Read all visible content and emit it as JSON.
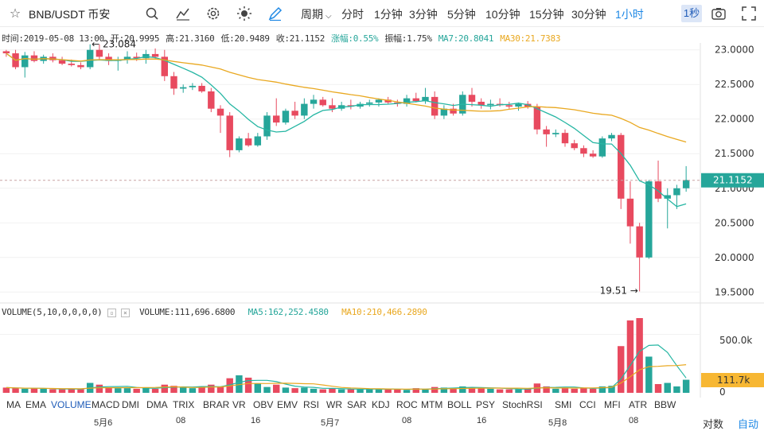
{
  "toolbar": {
    "pair": "BNB/USDT 币安",
    "period_label": "周期",
    "periods": [
      "分时",
      "1分钟",
      "3分钟",
      "5分钟",
      "10分钟",
      "15分钟",
      "30分钟",
      "1小时"
    ],
    "active_period": "1小时",
    "sec_button": "1秒",
    "icons": [
      "star-icon",
      "search-icon",
      "indicator-icon",
      "gear-icon",
      "sun-icon",
      "pen-icon",
      "camera-icon",
      "fullscreen-icon"
    ]
  },
  "ohlc": {
    "time": "时间:2019-05-08 13:00",
    "open": "开:20.9995",
    "high": "高:21.3160",
    "low": "低:20.9489",
    "close": "收:21.1152",
    "change": "涨幅:0.55%",
    "amplitude": "振幅:1.75%",
    "ma7": "MA7:20.8041",
    "ma30": "MA30:21.7383"
  },
  "volume_info": {
    "label": "VOLUME(5,10,0,0,0,0)",
    "value": "VOLUME:111,696.6800",
    "ma5": "MA5:162,252.4580",
    "ma10": "MA10:210,466.2890"
  },
  "price_axis": [
    "23.0000",
    "22.5000",
    "22.0000",
    "21.5000",
    "21.0000",
    "20.5000",
    "20.0000",
    "19.5000"
  ],
  "current_price": "21.1152",
  "annotations": {
    "high": "← 23.084",
    "low": "19.51 →"
  },
  "volume_axis": [
    "500.0k",
    "0"
  ],
  "current_volume": "111.7k",
  "indicators": [
    "MA",
    "EMA",
    "VOLUME",
    "MACD",
    "DMI",
    "DMA",
    "TRIX",
    "BRAR",
    "VR",
    "OBV",
    "EMV",
    "RSI",
    "WR",
    "SAR",
    "KDJ",
    "ROC",
    "MTM",
    "BOLL",
    "PSY",
    "StochRSI",
    "SMI",
    "CCI",
    "MFI",
    "ATR",
    "BBW"
  ],
  "active_indicator": "VOLUME",
  "date_labels": [
    "5月6",
    "08",
    "16",
    "5月7",
    "08",
    "16",
    "5月8",
    "08"
  ],
  "corner": {
    "scale": "对数",
    "auto": "自动"
  },
  "colors": {
    "up": "#26a69a",
    "down": "#e84a5f",
    "ma_fast": "#26b6a3",
    "ma_slow": "#e9a820",
    "accent": "#1e88e5"
  },
  "chart_data": {
    "type": "candlestick",
    "ylim": [
      19.4,
      23.1
    ],
    "candles": [
      [
        22.98,
        23.0,
        22.9,
        22.95
      ],
      [
        22.95,
        23.0,
        22.72,
        22.75
      ],
      [
        22.75,
        22.97,
        22.6,
        22.92
      ],
      [
        22.92,
        22.98,
        22.82,
        22.84
      ],
      [
        22.84,
        22.93,
        22.8,
        22.9
      ],
      [
        22.9,
        22.95,
        22.82,
        22.85
      ],
      [
        22.85,
        22.9,
        22.78,
        22.8
      ],
      [
        22.8,
        22.86,
        22.76,
        22.78
      ],
      [
        22.78,
        22.82,
        22.72,
        22.75
      ],
      [
        22.75,
        23.08,
        22.72,
        23.0
      ],
      [
        23.0,
        23.08,
        22.85,
        22.9
      ],
      [
        22.9,
        22.95,
        22.78,
        22.84
      ],
      [
        22.84,
        22.9,
        22.7,
        22.86
      ],
      [
        22.86,
        22.98,
        22.8,
        22.9
      ],
      [
        22.9,
        22.96,
        22.84,
        22.88
      ],
      [
        22.88,
        23.0,
        22.8,
        22.94
      ],
      [
        22.94,
        23.02,
        22.86,
        22.9
      ],
      [
        22.9,
        23.0,
        22.55,
        22.62
      ],
      [
        22.62,
        22.68,
        22.35,
        22.44
      ],
      [
        22.44,
        22.5,
        22.38,
        22.46
      ],
      [
        22.46,
        22.52,
        22.42,
        22.48
      ],
      [
        22.48,
        22.52,
        22.38,
        22.4
      ],
      [
        22.4,
        22.45,
        22.1,
        22.15
      ],
      [
        22.15,
        22.2,
        21.8,
        22.05
      ],
      [
        22.05,
        22.1,
        21.45,
        21.55
      ],
      [
        21.55,
        21.75,
        21.52,
        21.72
      ],
      [
        21.72,
        21.8,
        21.6,
        21.62
      ],
      [
        21.62,
        21.8,
        21.6,
        21.75
      ],
      [
        21.75,
        22.1,
        21.7,
        22.05
      ],
      [
        22.05,
        22.3,
        21.9,
        21.95
      ],
      [
        21.95,
        22.15,
        21.92,
        22.12
      ],
      [
        22.12,
        22.25,
        22.0,
        22.05
      ],
      [
        22.05,
        22.3,
        22.0,
        22.22
      ],
      [
        22.22,
        22.35,
        22.15,
        22.28
      ],
      [
        22.28,
        22.32,
        22.18,
        22.2
      ],
      [
        22.2,
        22.3,
        22.1,
        22.15
      ],
      [
        22.15,
        22.25,
        22.12,
        22.2
      ],
      [
        22.2,
        22.28,
        22.14,
        22.18
      ],
      [
        22.18,
        22.25,
        22.15,
        22.22
      ],
      [
        22.22,
        22.28,
        22.18,
        22.24
      ],
      [
        22.24,
        22.3,
        22.18,
        22.28
      ],
      [
        22.28,
        22.32,
        22.22,
        22.24
      ],
      [
        22.24,
        22.28,
        22.18,
        22.22
      ],
      [
        22.22,
        22.35,
        22.18,
        22.3
      ],
      [
        22.3,
        22.38,
        22.24,
        22.26
      ],
      [
        22.26,
        22.45,
        22.22,
        22.32
      ],
      [
        22.32,
        22.4,
        22.0,
        22.05
      ],
      [
        22.05,
        22.2,
        22.0,
        22.15
      ],
      [
        22.15,
        22.22,
        22.05,
        22.08
      ],
      [
        22.08,
        22.4,
        22.05,
        22.35
      ],
      [
        22.35,
        22.45,
        22.18,
        22.25
      ],
      [
        22.25,
        22.3,
        22.15,
        22.2
      ],
      [
        22.2,
        22.28,
        22.14,
        22.22
      ],
      [
        22.22,
        22.3,
        22.18,
        22.2
      ],
      [
        22.2,
        22.25,
        22.15,
        22.18
      ],
      [
        22.18,
        22.24,
        22.12,
        22.22
      ],
      [
        22.22,
        22.26,
        22.15,
        22.18
      ],
      [
        22.18,
        22.22,
        21.78,
        21.85
      ],
      [
        21.85,
        21.9,
        21.6,
        21.78
      ],
      [
        21.78,
        21.85,
        21.74,
        21.8
      ],
      [
        21.8,
        21.85,
        21.6,
        21.65
      ],
      [
        21.65,
        21.7,
        21.55,
        21.58
      ],
      [
        21.58,
        21.62,
        21.45,
        21.5
      ],
      [
        21.5,
        21.55,
        21.44,
        21.46
      ],
      [
        21.46,
        21.75,
        21.44,
        21.72
      ],
      [
        21.72,
        21.8,
        21.68,
        21.77
      ],
      [
        21.77,
        21.8,
        20.7,
        20.85
      ],
      [
        20.85,
        21.1,
        20.2,
        20.45
      ],
      [
        20.45,
        20.5,
        19.51,
        20.0
      ],
      [
        20.0,
        21.12,
        19.98,
        21.1
      ],
      [
        21.1,
        21.4,
        20.8,
        20.85
      ],
      [
        20.85,
        21.0,
        20.42,
        20.9
      ],
      [
        20.9,
        21.05,
        20.7,
        21.0
      ],
      [
        21.0,
        21.32,
        20.95,
        21.12
      ]
    ]
  },
  "volume_data": {
    "values": [
      45,
      40,
      35,
      38,
      35,
      30,
      30,
      35,
      30,
      85,
      70,
      45,
      40,
      40,
      35,
      45,
      35,
      70,
      60,
      45,
      40,
      55,
      70,
      50,
      125,
      150,
      130,
      80,
      50,
      70,
      45,
      40,
      45,
      35,
      30,
      40,
      30,
      30,
      30,
      35,
      30,
      30,
      30,
      25,
      40,
      30,
      50,
      45,
      40,
      55,
      45,
      40,
      35,
      30,
      30,
      30,
      35,
      80,
      55,
      35,
      45,
      35,
      40,
      35,
      55,
      60,
      400,
      620,
      640,
      310,
      75,
      85,
      55,
      112
    ],
    "max": 640
  }
}
